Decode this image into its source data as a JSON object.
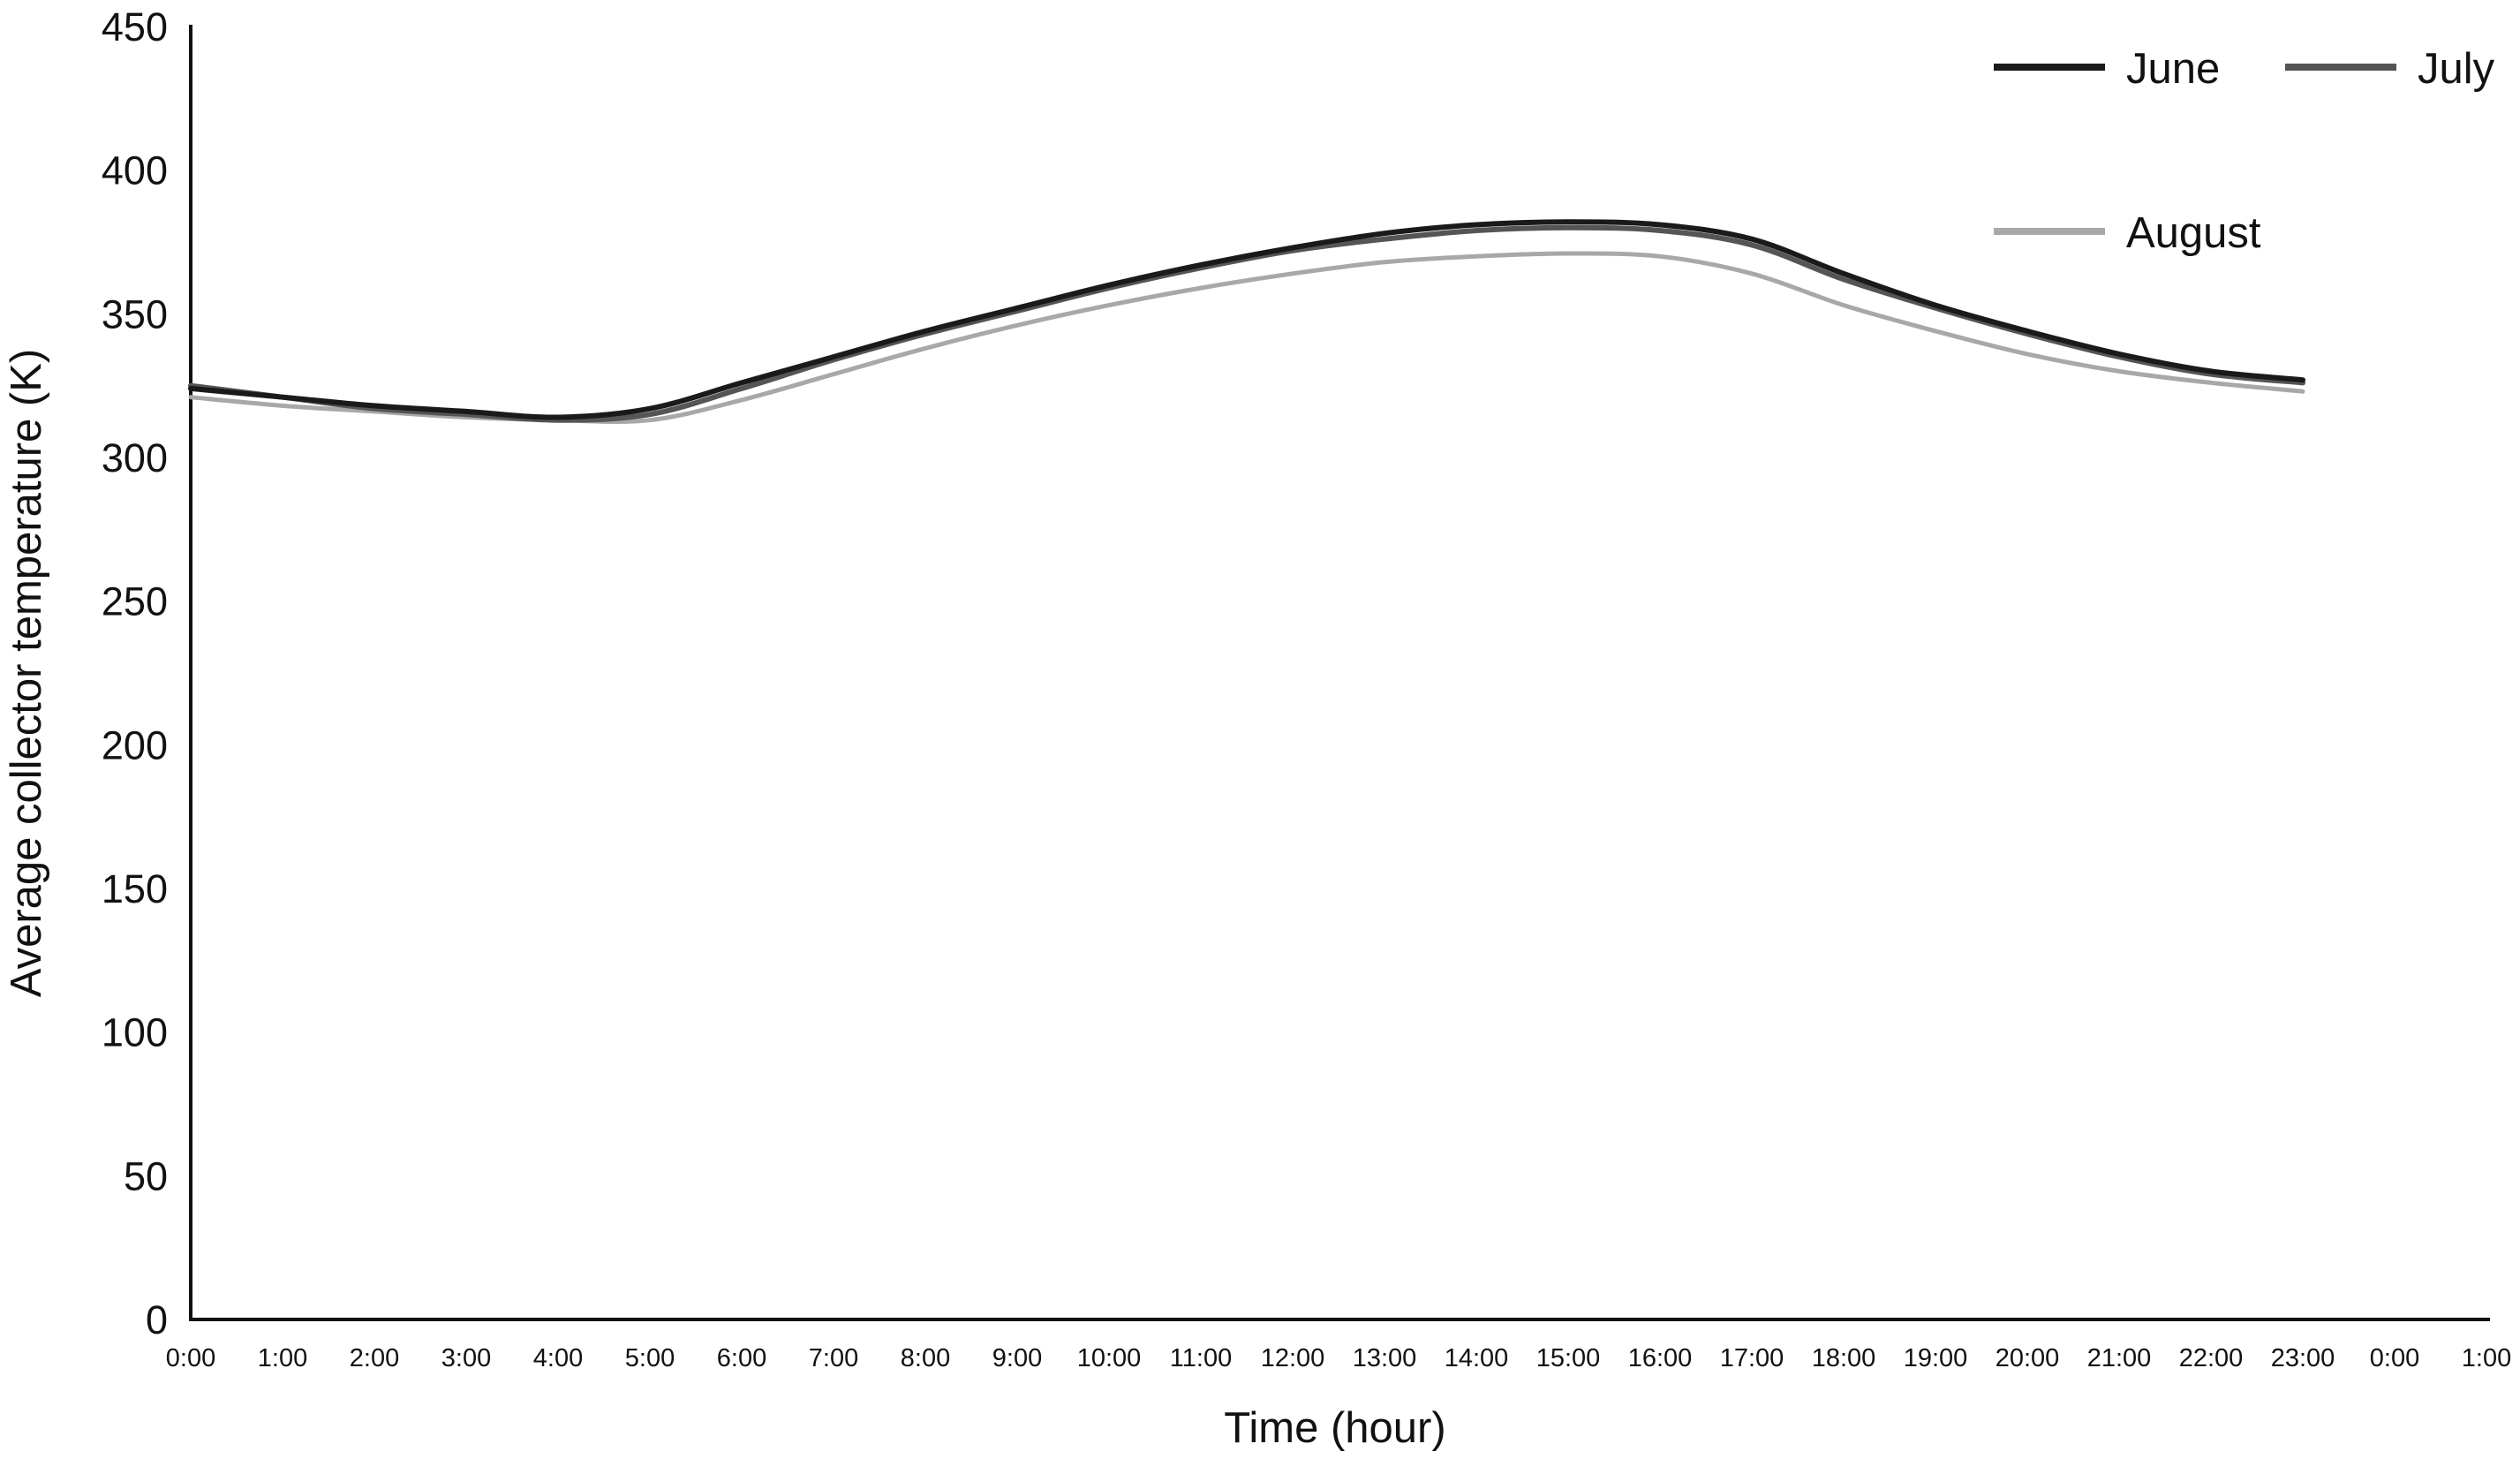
{
  "chart_data": {
    "type": "line",
    "title": "",
    "xlabel": "Time (hour)",
    "ylabel": "Average collector temperature (K)",
    "ylim": [
      0,
      450
    ],
    "yticks": [
      0,
      50,
      100,
      150,
      200,
      250,
      300,
      350,
      400,
      450
    ],
    "grid": false,
    "legend": "top-right",
    "categories": [
      "0:00",
      "1:00",
      "2:00",
      "3:00",
      "4:00",
      "5:00",
      "6:00",
      "7:00",
      "8:00",
      "9:00",
      "10:00",
      "11:00",
      "12:00",
      "13:00",
      "14:00",
      "15:00",
      "16:00",
      "17:00",
      "18:00",
      "19:00",
      "20:00",
      "21:00",
      "22:00",
      "23:00",
      "0:00",
      "1:00"
    ],
    "series": [
      {
        "name": "June",
        "color": "#1a1a1a",
        "values": [
          324,
          321,
          318,
          316,
          314,
          317,
          326,
          335,
          344,
          352,
          360,
          367,
          373,
          378,
          381,
          382,
          381,
          376,
          364,
          353,
          344,
          336,
          330,
          327,
          null,
          null
        ]
      },
      {
        "name": "July",
        "color": "#555555",
        "values": [
          325,
          321,
          317,
          315,
          313,
          315,
          324,
          334,
          343,
          351,
          359,
          366,
          372,
          376,
          379,
          380,
          379,
          374,
          362,
          352,
          343,
          335,
          329,
          326,
          null,
          null
        ]
      },
      {
        "name": "August",
        "color": "#a8a8a8",
        "values": [
          321,
          318,
          316,
          314,
          313,
          313,
          320,
          329,
          338,
          346,
          353,
          359,
          364,
          368,
          370,
          371,
          370,
          364,
          353,
          344,
          336,
          330,
          326,
          323,
          null,
          null
        ]
      }
    ]
  }
}
